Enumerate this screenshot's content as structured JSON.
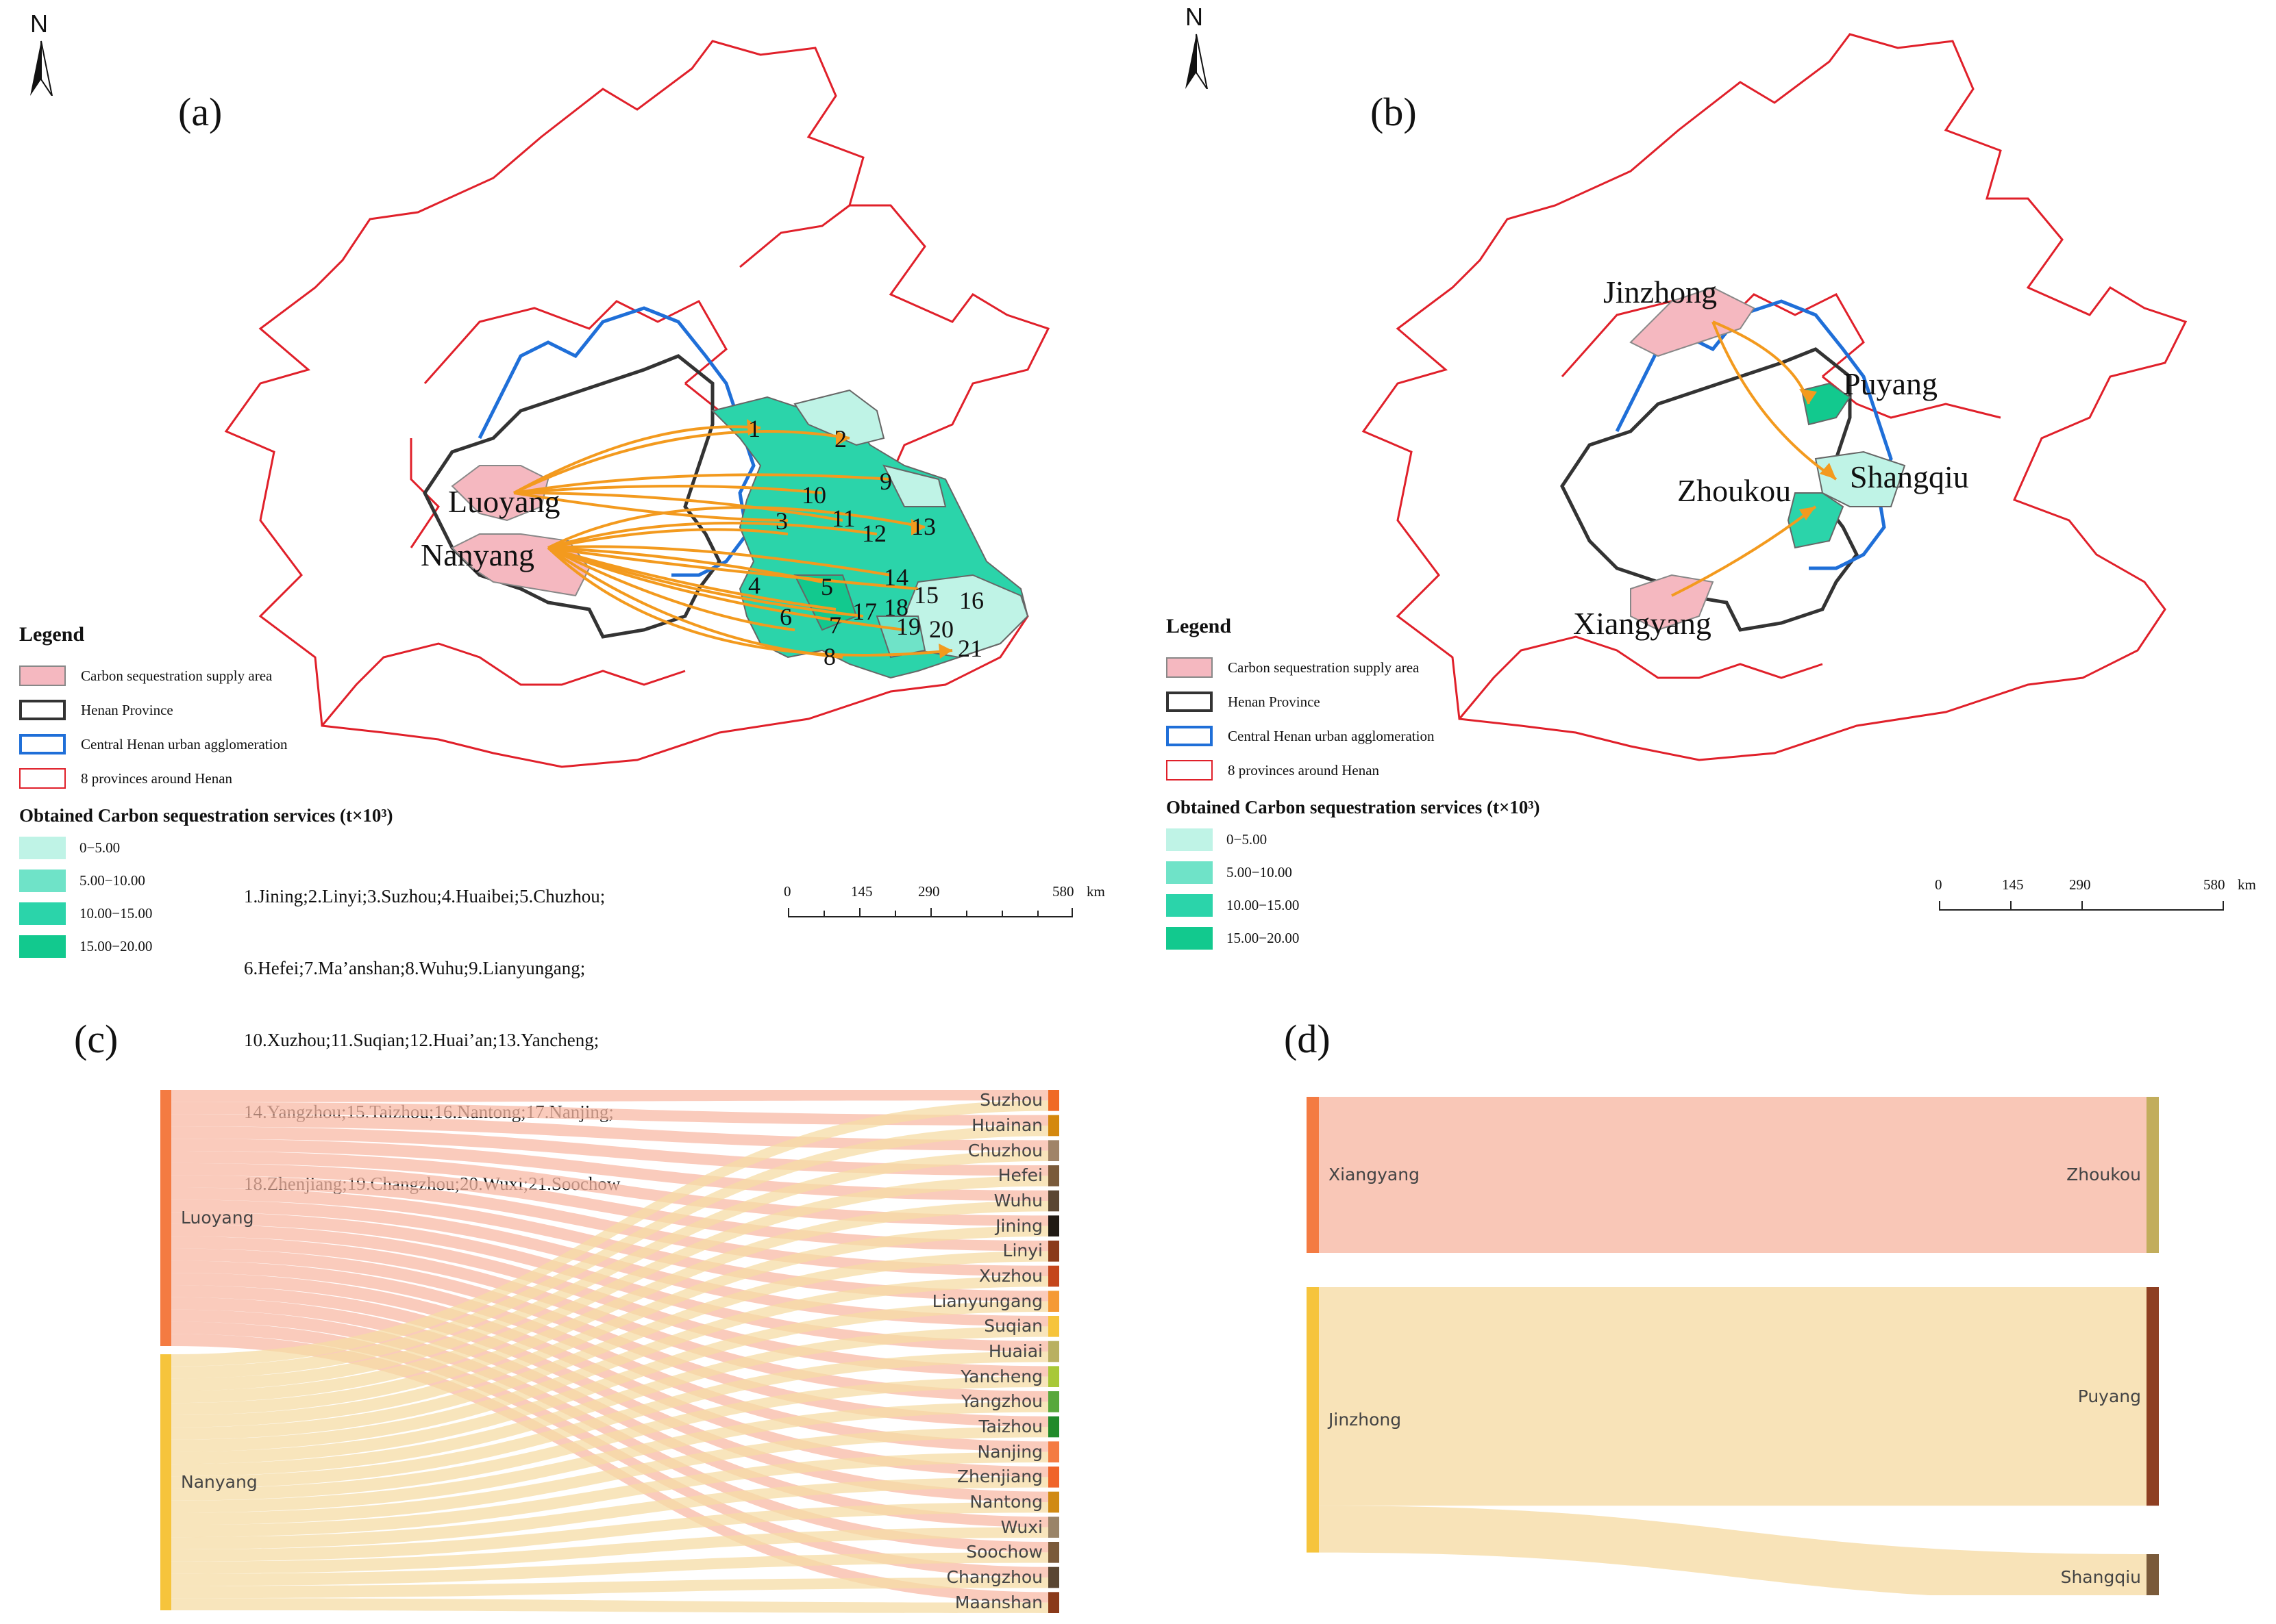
{
  "panels": {
    "a": {
      "label": "(a)"
    },
    "b": {
      "label": "(b)"
    },
    "c": {
      "label": "(c)"
    },
    "d": {
      "label": "(d)"
    }
  },
  "north_label": "N",
  "legend": {
    "title": "Legend",
    "items": [
      {
        "label": "Carbon sequestration supply area",
        "fill": "#f5b8c0",
        "stroke": "#888888"
      },
      {
        "label": "Henan Province",
        "fill": "#ffffff",
        "stroke": "#333333"
      },
      {
        "label": "Central Henan urban agglomeration",
        "fill": "#ffffff",
        "stroke": "#1f6fd8"
      },
      {
        "label": "8 provinces around Henan",
        "fill": "#ffffff",
        "stroke": "#e0202a"
      }
    ]
  },
  "services": {
    "title": "Obtained Carbon sequestration services (t×10³)",
    "classes": [
      {
        "label": "0−5.00",
        "color": "#bff3e6"
      },
      {
        "label": "5.00−10.00",
        "color": "#6fe3c8"
      },
      {
        "label": "10.00−15.00",
        "color": "#2bd4aa"
      },
      {
        "label": "15.00−20.00",
        "color": "#12c98e"
      }
    ]
  },
  "city_key": [
    "1.Jining;2.Linyi;3.Suzhou;4.Huaibei;5.Chuzhou;",
    "6.Hefei;7.Ma’anshan;8.Wuhu;9.Lianyungang;",
    "10.Xuzhou;11.Suqian;12.Huai’an;13.Yancheng;",
    "14.Yangzhou;15.Taizhou;16.Nantong;17.Nanjing;",
    "18.Zhenjiang;19.Changzhou;20.Wuxi;21.Soochow"
  ],
  "scale": {
    "ticks": [
      "0",
      "145",
      "290",
      "580"
    ],
    "unit": "km"
  },
  "map_a": {
    "suppliers": [
      "Luoyang",
      "Nanyang"
    ],
    "numbers": [
      "1",
      "2",
      "3",
      "4",
      "5",
      "6",
      "7",
      "8",
      "9",
      "10",
      "11",
      "12",
      "13",
      "14",
      "15",
      "16",
      "17",
      "18",
      "19",
      "20",
      "21"
    ]
  },
  "map_b": {
    "places": [
      "Jinzhong",
      "Puyang",
      "Zhoukou",
      "Shangqiu",
      "Xiangyang"
    ]
  },
  "chart_data": [
    {
      "type": "sankey",
      "title": "(c)",
      "sources": [
        {
          "name": "Luoyang",
          "color": "#f47b42"
        },
        {
          "name": "Nanyang",
          "color": "#f6c43c"
        }
      ],
      "targets": [
        {
          "name": "Suzhou",
          "color": "#f06a25"
        },
        {
          "name": "Huainan",
          "color": "#d4880e"
        },
        {
          "name": "Chuzhou",
          "color": "#a08468"
        },
        {
          "name": "Hefei",
          "color": "#7a5a3a"
        },
        {
          "name": "Wuhu",
          "color": "#5a4632"
        },
        {
          "name": "Jining",
          "color": "#201a14"
        },
        {
          "name": "Linyi",
          "color": "#8a3a1a"
        },
        {
          "name": "Xuzhou",
          "color": "#c4461c"
        },
        {
          "name": "Lianyungang",
          "color": "#f59a35"
        },
        {
          "name": "Suqian",
          "color": "#f6c43c"
        },
        {
          "name": "Huaiai",
          "color": "#b9b061"
        },
        {
          "name": "Yancheng",
          "color": "#a8c838"
        },
        {
          "name": "Yangzhou",
          "color": "#58a83c"
        },
        {
          "name": "Taizhou",
          "color": "#218a2a"
        },
        {
          "name": "Nanjing",
          "color": "#f47b42"
        },
        {
          "name": "Zhenjiang",
          "color": "#f0642a"
        },
        {
          "name": "Nantong",
          "color": "#d08a14"
        },
        {
          "name": "Wuxi",
          "color": "#9a8468"
        },
        {
          "name": "Soochow",
          "color": "#7a5a3a"
        },
        {
          "name": "Changzhou",
          "color": "#5a4632"
        },
        {
          "name": "Maanshan",
          "color": "#8a3a1a"
        }
      ],
      "source_values": [
        1.0,
        1.0
      ]
    },
    {
      "type": "sankey",
      "title": "(d)",
      "sources": [
        {
          "name": "Xiangyang",
          "color": "#f47b42"
        },
        {
          "name": "Jinzhong",
          "color": "#f6c43c"
        }
      ],
      "targets": [
        {
          "name": "Zhoukou",
          "color": "#c2ad5c"
        },
        {
          "name": "Puyang",
          "color": "#8e3f22"
        },
        {
          "name": "Shangqiu",
          "color": "#7a5a3a"
        }
      ],
      "links": [
        {
          "source": "Xiangyang",
          "target": "Zhoukou",
          "value": 1.0
        },
        {
          "source": "Jinzhong",
          "target": "Puyang",
          "value": 1.4
        },
        {
          "source": "Jinzhong",
          "target": "Shangqiu",
          "value": 0.3
        }
      ]
    }
  ]
}
